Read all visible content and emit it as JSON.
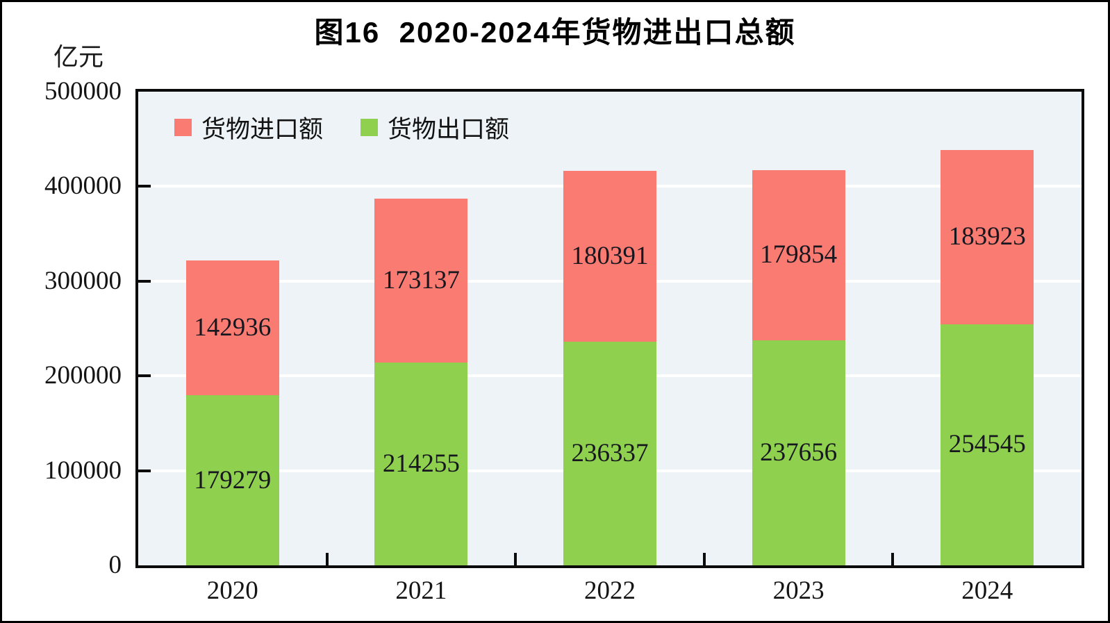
{
  "chart_data": {
    "type": "bar",
    "stacked": true,
    "title": "图16  2020-2024年货物进出口总额",
    "unit_label": "亿元",
    "categories": [
      "2020",
      "2021",
      "2022",
      "2023",
      "2024"
    ],
    "series": [
      {
        "name": "货物进口额",
        "color": "#F97B71",
        "stack_position": "top",
        "values": [
          142936,
          173137,
          180391,
          179854,
          183923
        ]
      },
      {
        "name": "货物出口额",
        "color": "#8FD04F",
        "stack_position": "bottom",
        "values": [
          179279,
          214255,
          236337,
          237656,
          254545
        ]
      }
    ],
    "ylim": [
      0,
      500000
    ],
    "y_ticks": [
      0,
      100000,
      200000,
      300000,
      400000,
      500000
    ],
    "grid": "horizontal white gridlines at each y tick",
    "legend_position": "top-left inside plot",
    "plot_background": "#EDF3F7",
    "value_labels": "centered inside each segment"
  }
}
